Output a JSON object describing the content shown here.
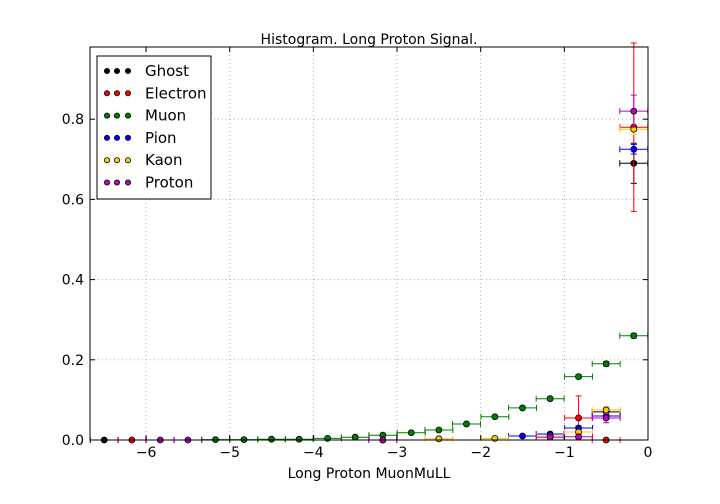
{
  "chart_data": {
    "type": "scatter",
    "title": "Histogram. Long Proton Signal.",
    "xlabel": "Long Proton MuonMuLL",
    "ylabel": "",
    "xlim": [
      -6.67,
      0
    ],
    "ylim": [
      0,
      0.98
    ],
    "xticks": [
      -6,
      -5,
      -4,
      -3,
      -2,
      -1,
      0
    ],
    "yticks": [
      0.0,
      0.2,
      0.4,
      0.6,
      0.8
    ],
    "xtick_labels": [
      "−6",
      "−5",
      "−4",
      "−3",
      "−2",
      "−1",
      "0"
    ],
    "ytick_labels": [
      "0.0",
      "0.2",
      "0.4",
      "0.6",
      "0.8"
    ],
    "grid": true,
    "legend_position": "top-left",
    "bin_halfwidth": 0.167,
    "series": [
      {
        "name": "Ghost",
        "color": "#000000",
        "points": [
          {
            "x": -6.5,
            "y": 0.0,
            "err": 0.0
          },
          {
            "x": -0.5,
            "y": 0.07,
            "err": 0.0
          },
          {
            "x": -0.17,
            "y": 0.69,
            "err": 0.05
          }
        ]
      },
      {
        "name": "Electron",
        "color": "#ff0000",
        "points": [
          {
            "x": -6.17,
            "y": 0.0,
            "err": 0.0
          },
          {
            "x": -0.83,
            "y": 0.055,
            "err": 0.055
          },
          {
            "x": -0.5,
            "y": 0.0,
            "err": 0.0
          },
          {
            "x": -0.17,
            "y": 0.78,
            "err": 0.21
          }
        ]
      },
      {
        "name": "Muon",
        "color": "#008000",
        "points": [
          {
            "x": -5.17,
            "y": 0.001,
            "err": 0.001
          },
          {
            "x": -4.83,
            "y": 0.001,
            "err": 0.001
          },
          {
            "x": -4.5,
            "y": 0.002,
            "err": 0.001
          },
          {
            "x": -4.17,
            "y": 0.002,
            "err": 0.001
          },
          {
            "x": -3.83,
            "y": 0.004,
            "err": 0.001
          },
          {
            "x": -3.5,
            "y": 0.007,
            "err": 0.001
          },
          {
            "x": -3.17,
            "y": 0.012,
            "err": 0.002
          },
          {
            "x": -2.83,
            "y": 0.018,
            "err": 0.002
          },
          {
            "x": -2.5,
            "y": 0.025,
            "err": 0.002
          },
          {
            "x": -2.17,
            "y": 0.04,
            "err": 0.003
          },
          {
            "x": -1.83,
            "y": 0.058,
            "err": 0.003
          },
          {
            "x": -1.5,
            "y": 0.08,
            "err": 0.004
          },
          {
            "x": -1.17,
            "y": 0.103,
            "err": 0.004
          },
          {
            "x": -0.83,
            "y": 0.158,
            "err": 0.005
          },
          {
            "x": -0.5,
            "y": 0.19,
            "err": 0.006
          },
          {
            "x": -0.17,
            "y": 0.26,
            "err": 0.006
          }
        ]
      },
      {
        "name": "Pion",
        "color": "#0000ff",
        "points": [
          {
            "x": -3.17,
            "y": 0.0,
            "err": 0.0
          },
          {
            "x": -1.5,
            "y": 0.01,
            "err": 0.003
          },
          {
            "x": -1.17,
            "y": 0.015,
            "err": 0.004
          },
          {
            "x": -0.83,
            "y": 0.03,
            "err": 0.005
          },
          {
            "x": -0.5,
            "y": 0.06,
            "err": 0.008
          },
          {
            "x": -0.17,
            "y": 0.725,
            "err": 0.012
          }
        ]
      },
      {
        "name": "Kaon",
        "color": "#ffcc00",
        "points": [
          {
            "x": -2.5,
            "y": 0.003,
            "err": 0.002
          },
          {
            "x": -1.83,
            "y": 0.004,
            "err": 0.002
          },
          {
            "x": -1.17,
            "y": 0.01,
            "err": 0.003
          },
          {
            "x": -0.83,
            "y": 0.02,
            "err": 0.004
          },
          {
            "x": -0.5,
            "y": 0.075,
            "err": 0.008
          },
          {
            "x": -0.17,
            "y": 0.775,
            "err": 0.014
          }
        ]
      },
      {
        "name": "Proton",
        "color": "#bf00bf",
        "points": [
          {
            "x": -5.83,
            "y": 0.0,
            "err": 0.0
          },
          {
            "x": -5.5,
            "y": 0.0,
            "err": 0.0
          },
          {
            "x": -3.17,
            "y": 0.0,
            "err": 0.0
          },
          {
            "x": -1.17,
            "y": 0.007,
            "err": 0.004
          },
          {
            "x": -0.83,
            "y": 0.008,
            "err": 0.005
          },
          {
            "x": -0.5,
            "y": 0.055,
            "err": 0.012
          },
          {
            "x": -0.17,
            "y": 0.82,
            "err": 0.04
          }
        ]
      }
    ]
  }
}
